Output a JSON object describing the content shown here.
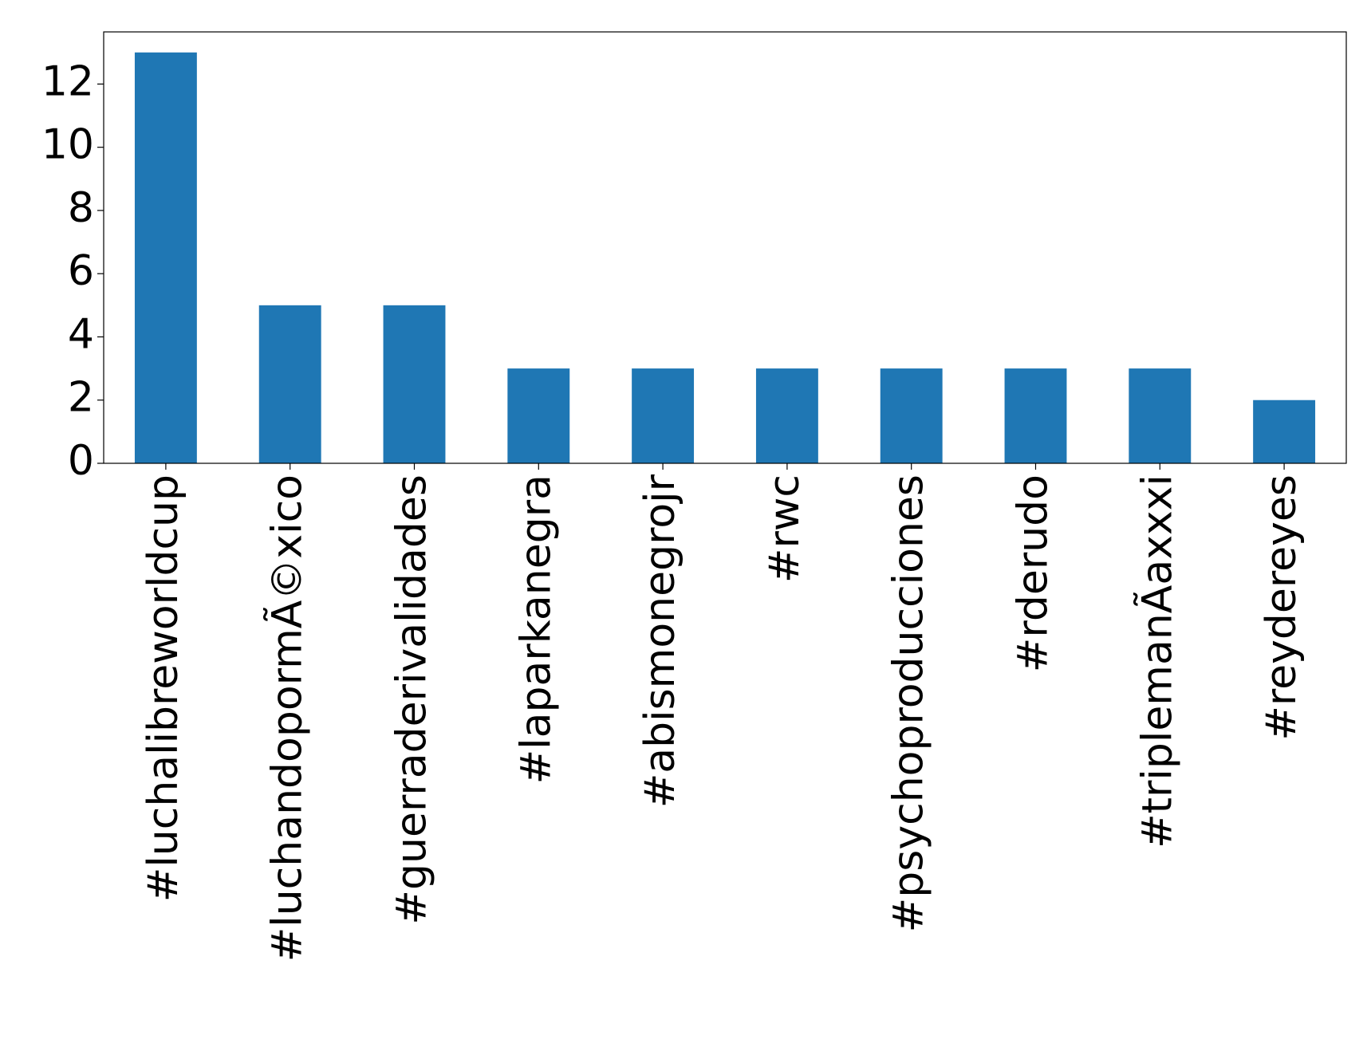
{
  "chart_data": {
    "type": "bar",
    "categories": [
      "#luchalibreworldcup",
      "#luchandopormÃ©xico",
      "#guerraderivalidades",
      "#laparkanegra",
      "#abismonegrojr",
      "#rwc",
      "#psychoproducciones",
      "#rderudo",
      "#triplemanÃ­axxxi",
      "#reydereyes"
    ],
    "values": [
      13,
      5,
      5,
      3,
      3,
      3,
      3,
      3,
      3,
      2
    ],
    "color": "#1f77b4",
    "ylim": [
      0,
      13.65
    ],
    "yticks": [
      0,
      2,
      4,
      6,
      8,
      10,
      12
    ],
    "grid": false
  }
}
